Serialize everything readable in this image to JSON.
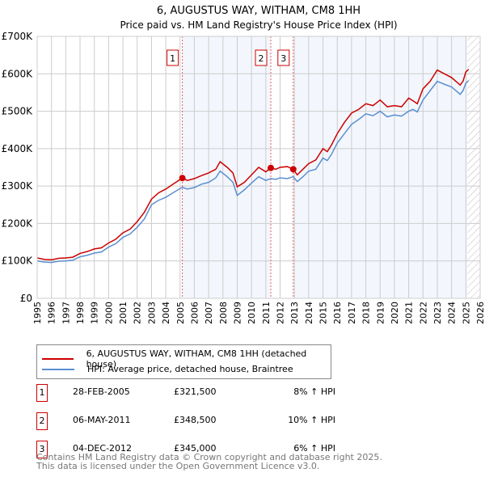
{
  "chart_data": {
    "type": "line",
    "title": "6, AUGUSTUS WAY, WITHAM, CM8 1HH",
    "subtitle": "Price paid vs. HM Land Registry's House Price Index (HPI)",
    "xlim": [
      1995,
      2026
    ],
    "ylim": [
      0,
      700000
    ],
    "yticks": [
      {
        "v": 0,
        "label": "£0"
      },
      {
        "v": 100000,
        "label": "£100K"
      },
      {
        "v": 200000,
        "label": "£200K"
      },
      {
        "v": 300000,
        "label": "£300K"
      },
      {
        "v": 400000,
        "label": "£400K"
      },
      {
        "v": 500000,
        "label": "£500K"
      },
      {
        "v": 600000,
        "label": "£600K"
      },
      {
        "v": 700000,
        "label": "£700K"
      }
    ],
    "xticks": [
      "1995",
      "1996",
      "1997",
      "1998",
      "1999",
      "2000",
      "2001",
      "2002",
      "2003",
      "2004",
      "2005",
      "2006",
      "2007",
      "2008",
      "2009",
      "2010",
      "2011",
      "2012",
      "2013",
      "2014",
      "2015",
      "2016",
      "2017",
      "2018",
      "2019",
      "2020",
      "2021",
      "2022",
      "2023",
      "2024",
      "2025",
      "2026"
    ],
    "grid": true,
    "forecast_start": 2025.1,
    "series": [
      {
        "name": "6, AUGUSTUS WAY, WITHAM, CM8 1HH (detached house)",
        "color": "#cc0000",
        "x": [
          1995,
          1995.5,
          1996,
          1996.5,
          1997,
          1997.5,
          1998,
          1998.5,
          1999,
          1999.5,
          2000,
          2000.5,
          2001,
          2001.5,
          2002,
          2002.5,
          2003,
          2003.5,
          2004,
          2004.5,
          2005.16,
          2005.5,
          2006,
          2006.5,
          2007,
          2007.5,
          2007.8,
          2008.3,
          2008.7,
          2009,
          2009.5,
          2010,
          2010.5,
          2011,
          2011.35,
          2011.7,
          2012,
          2012.5,
          2012.92,
          2013.2,
          2013.6,
          2014,
          2014.5,
          2015,
          2015.3,
          2015.6,
          2016,
          2016.5,
          2017,
          2017.5,
          2018,
          2018.5,
          2019,
          2019.5,
          2020,
          2020.5,
          2021,
          2021.3,
          2021.6,
          2022,
          2022.5,
          2023,
          2023.5,
          2024,
          2024.6,
          2024.8,
          2025,
          2025.2
        ],
        "y": [
          108000,
          104000,
          103000,
          107000,
          108000,
          110000,
          120000,
          125000,
          132000,
          135000,
          148000,
          158000,
          175000,
          185000,
          205000,
          230000,
          265000,
          282000,
          292000,
          305000,
          321500,
          315000,
          320000,
          328000,
          335000,
          345000,
          365000,
          350000,
          335000,
          298000,
          310000,
          330000,
          350000,
          338000,
          348500,
          345000,
          350000,
          352000,
          345000,
          330000,
          345000,
          360000,
          370000,
          400000,
          392000,
          410000,
          440000,
          470000,
          495000,
          505000,
          520000,
          515000,
          530000,
          512000,
          515000,
          512000,
          535000,
          528000,
          520000,
          560000,
          580000,
          610000,
          600000,
          590000,
          570000,
          580000,
          605000,
          612000
        ]
      },
      {
        "name": "HPI: Average price, detached house, Braintree",
        "color": "#5b8fd0",
        "x": [
          1995,
          1995.5,
          1996,
          1996.5,
          1997,
          1997.5,
          1998,
          1998.5,
          1999,
          1999.5,
          2000,
          2000.5,
          2001,
          2001.5,
          2002,
          2002.5,
          2003,
          2003.5,
          2004,
          2004.5,
          2005.16,
          2005.5,
          2006,
          2006.5,
          2007,
          2007.5,
          2007.8,
          2008.3,
          2008.7,
          2009,
          2009.5,
          2010,
          2010.5,
          2011,
          2011.35,
          2011.7,
          2012,
          2012.5,
          2012.92,
          2013.2,
          2013.6,
          2014,
          2014.5,
          2015,
          2015.3,
          2015.6,
          2016,
          2016.5,
          2017,
          2017.5,
          2018,
          2018.5,
          2019,
          2019.5,
          2020,
          2020.5,
          2021,
          2021.3,
          2021.6,
          2022,
          2022.5,
          2023,
          2023.5,
          2024,
          2024.6,
          2024.8,
          2025,
          2025.2
        ],
        "y": [
          100000,
          97000,
          96000,
          99000,
          100000,
          102000,
          111000,
          115000,
          121000,
          124000,
          137000,
          146000,
          163000,
          172000,
          190000,
          212000,
          250000,
          262000,
          270000,
          282000,
          297000,
          292000,
          296000,
          305000,
          310000,
          322000,
          340000,
          325000,
          310000,
          275000,
          290000,
          308000,
          325000,
          315000,
          320000,
          318000,
          322000,
          320000,
          325000,
          312000,
          325000,
          340000,
          345000,
          375000,
          368000,
          385000,
          415000,
          440000,
          465000,
          478000,
          493000,
          488000,
          500000,
          485000,
          490000,
          487000,
          500000,
          505000,
          498000,
          530000,
          555000,
          580000,
          572000,
          565000,
          545000,
          555000,
          575000,
          582000
        ]
      }
    ],
    "sales": [
      {
        "label": "1",
        "x": 2005.16,
        "y": 321500,
        "date": "28-FEB-2005",
        "price": "£321,500",
        "hpi": "8% ↑ HPI"
      },
      {
        "label": "2",
        "x": 2011.35,
        "y": 348500,
        "date": "06-MAY-2011",
        "price": "£348,500",
        "hpi": "10% ↑ HPI"
      },
      {
        "label": "3",
        "x": 2012.92,
        "y": 345000,
        "date": "04-DEC-2012",
        "price": "£345,000",
        "hpi": "6% ↑ HPI"
      }
    ]
  },
  "legend": {
    "red": "6, AUGUSTUS WAY, WITHAM, CM8 1HH (detached house)",
    "blue": "HPI: Average price, detached house, Braintree"
  },
  "footer": {
    "line1": "Contains HM Land Registry data © Crown copyright and database right 2025.",
    "line2": "This data is licensed under the Open Government Licence v3.0."
  }
}
